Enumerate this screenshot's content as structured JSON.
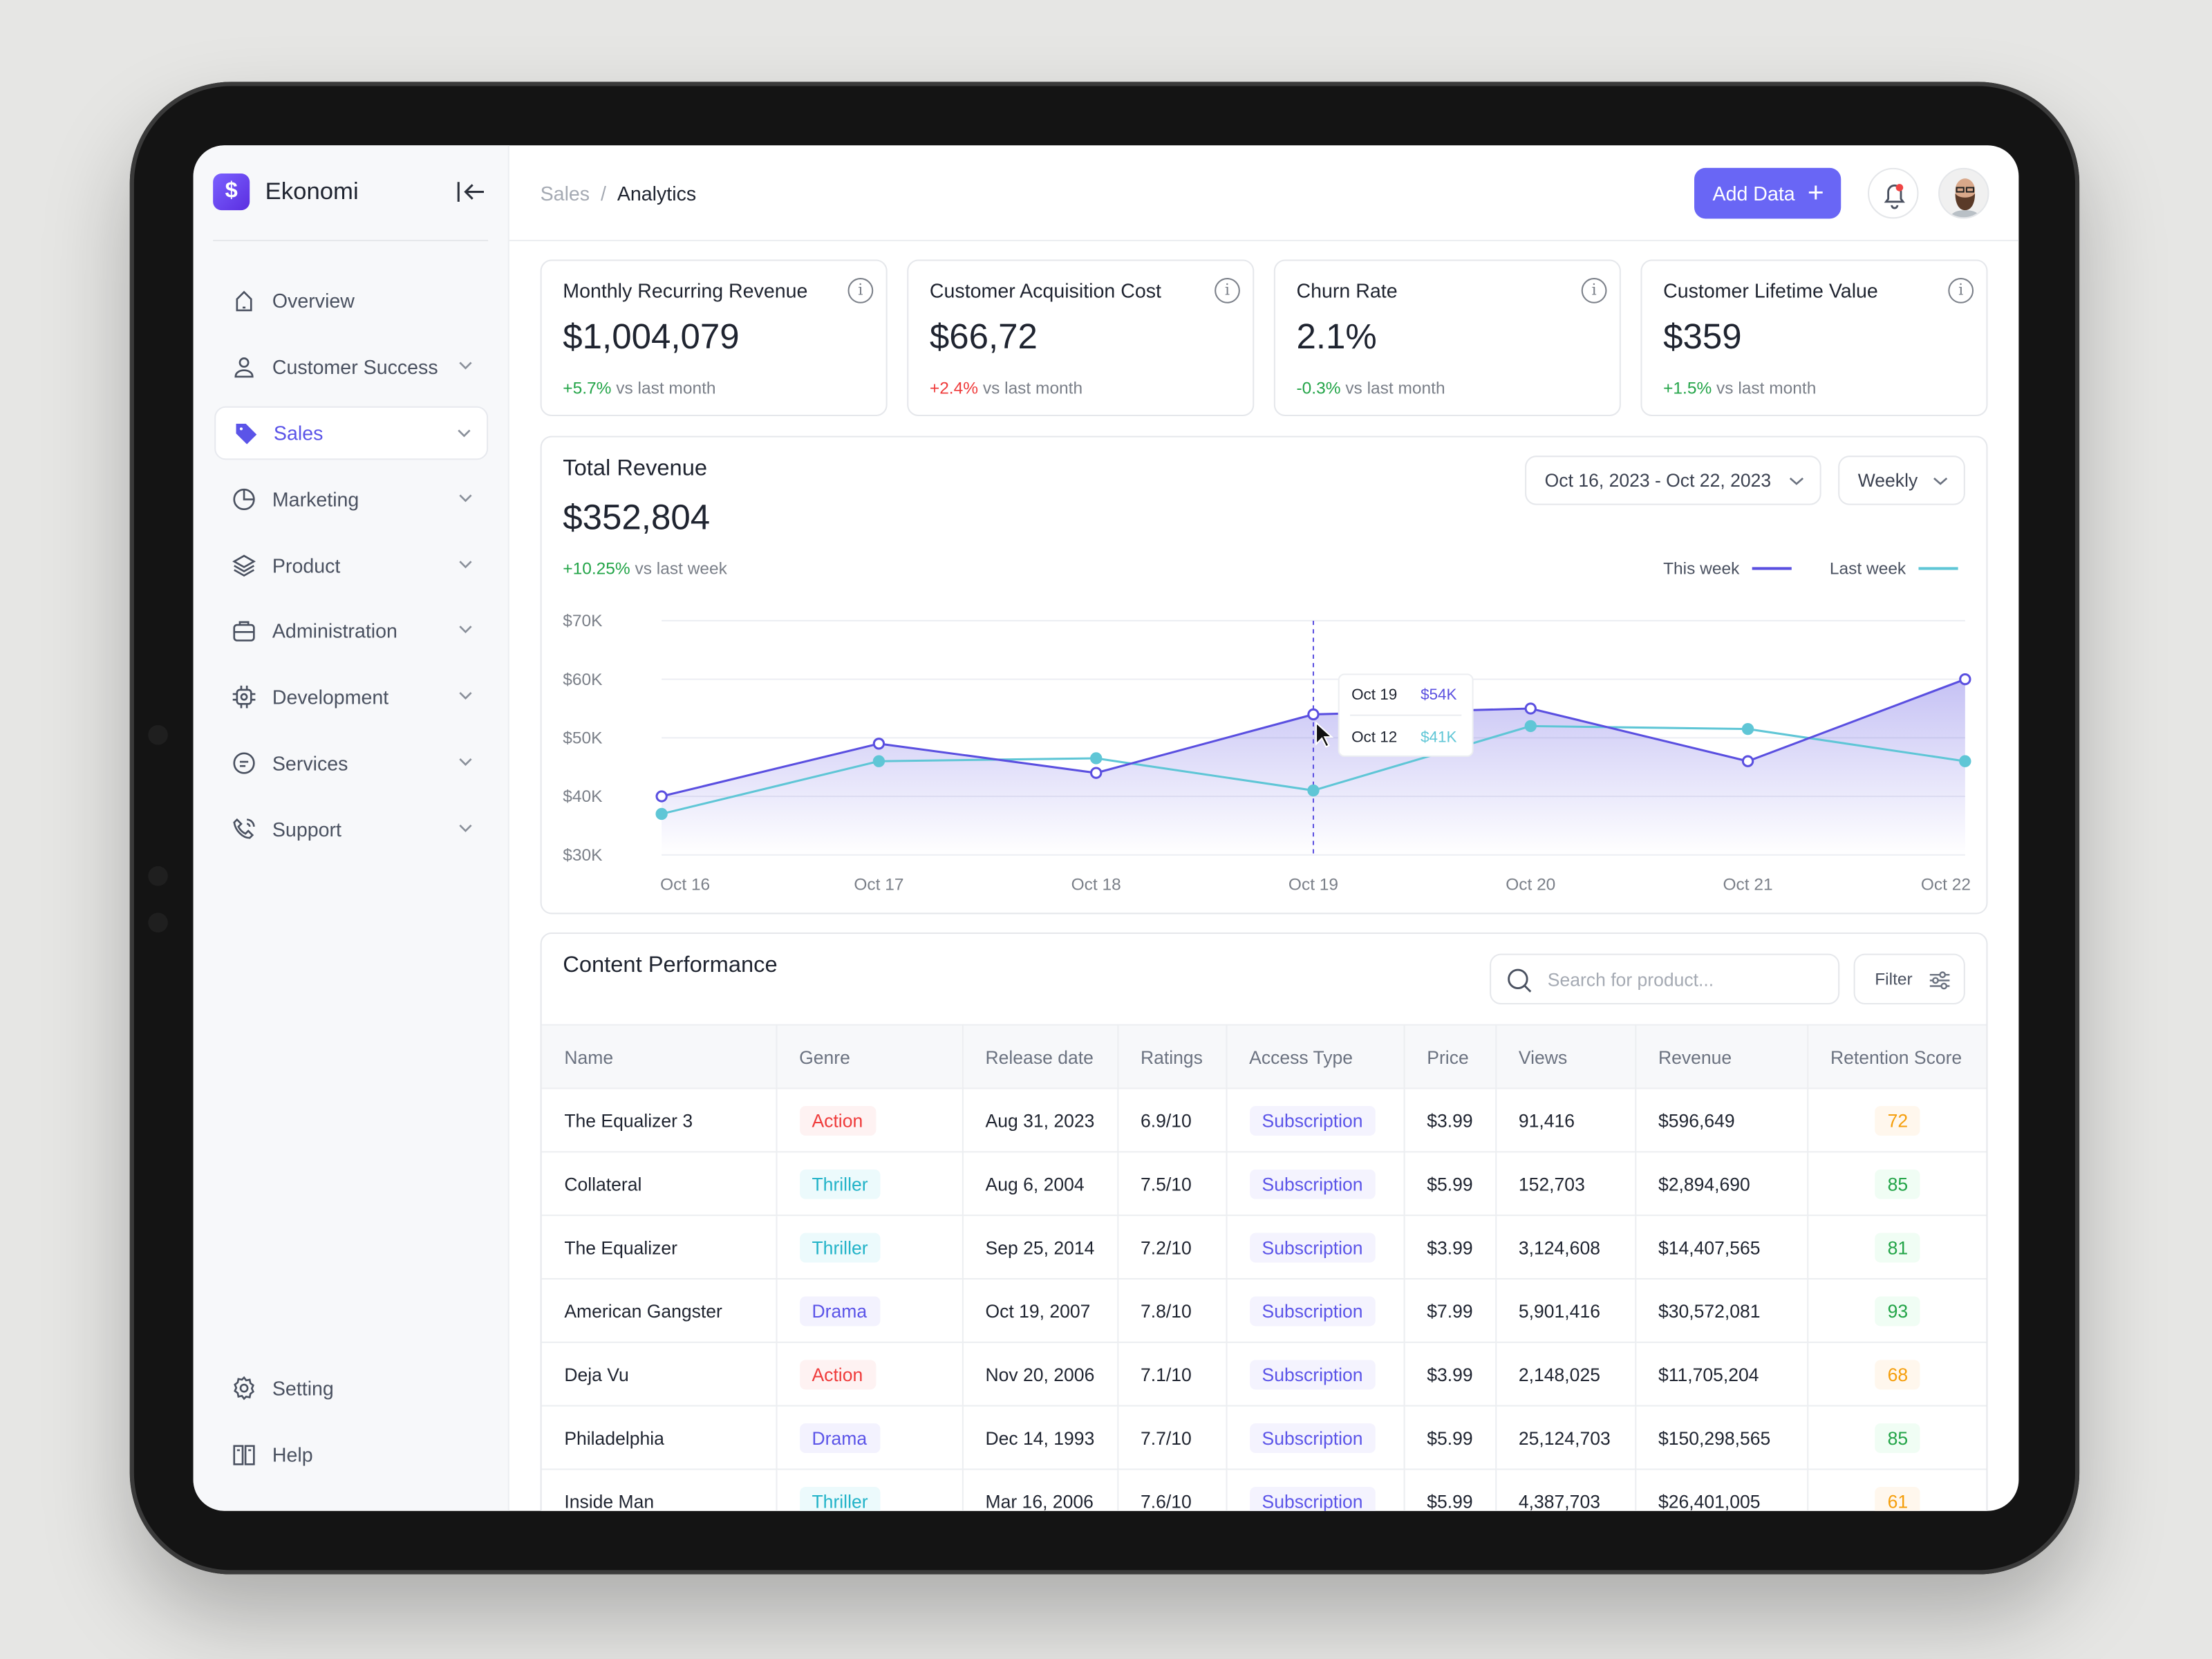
{
  "app": {
    "name": "Ekonomi"
  },
  "sidebar": {
    "items": [
      {
        "label": "Overview",
        "icon": "home-icon",
        "chevron": false
      },
      {
        "label": "Customer Success",
        "icon": "user-icon",
        "chevron": true
      },
      {
        "label": "Sales",
        "icon": "tag-icon",
        "chevron": true,
        "active": true
      },
      {
        "label": "Marketing",
        "icon": "pie-chart-icon",
        "chevron": true
      },
      {
        "label": "Product",
        "icon": "layers-icon",
        "chevron": true
      },
      {
        "label": "Administration",
        "icon": "briefcase-icon",
        "chevron": true
      },
      {
        "label": "Development",
        "icon": "chip-icon",
        "chevron": true
      },
      {
        "label": "Services",
        "icon": "message-icon",
        "chevron": true
      },
      {
        "label": "Support",
        "icon": "phone-icon",
        "chevron": true
      }
    ],
    "bottom": [
      {
        "label": "Setting",
        "icon": "gear-icon"
      },
      {
        "label": "Help",
        "icon": "book-icon"
      }
    ]
  },
  "header": {
    "breadcrumb": [
      "Sales",
      "Analytics"
    ],
    "add_button": "Add Data"
  },
  "kpis": [
    {
      "title": "Monthly Recurring Revenue",
      "value": "$1,004,079",
      "delta": "+5.7%",
      "delta_type": "pos",
      "suffix": "vs last month"
    },
    {
      "title": "Customer Acquisition Cost",
      "value": "$66,72",
      "delta": "+2.4%",
      "delta_type": "neg",
      "suffix": "vs last month"
    },
    {
      "title": "Churn Rate",
      "value": "2.1%",
      "delta": "-0.3%",
      "delta_type": "pos",
      "suffix": "vs last month"
    },
    {
      "title": "Customer Lifetime Value",
      "value": "$359",
      "delta": "+1.5%",
      "delta_type": "pos",
      "suffix": "vs last month"
    }
  ],
  "revenue": {
    "title": "Total Revenue",
    "value": "$352,804",
    "delta": "+10.25%",
    "suffix": "vs last week",
    "date_range": "Oct 16, 2023 - Oct 22, 2023",
    "period": "Weekly"
  },
  "chart_data": {
    "type": "line",
    "title": "Total Revenue",
    "categories": [
      "Oct 16",
      "Oct 17",
      "Oct 18",
      "Oct 19",
      "Oct 20",
      "Oct 21",
      "Oct 22"
    ],
    "y_ticks": [
      "$30K",
      "$40K",
      "$50K",
      "$60K",
      "$70K"
    ],
    "ylim": [
      30,
      70
    ],
    "y_unit": "$K",
    "series": [
      {
        "name": "This week",
        "color": "#5a4fe0",
        "values": [
          40,
          49,
          44,
          54,
          55,
          46,
          60
        ]
      },
      {
        "name": "Last week",
        "color": "#5fc6d6",
        "values": [
          37,
          46,
          46.5,
          41,
          52,
          51.5,
          46
        ]
      }
    ],
    "legend": "top-right",
    "tooltip": {
      "rows": [
        {
          "label": "Oct 19",
          "value": "$54K"
        },
        {
          "label": "Oct 12",
          "value": "$41K"
        }
      ],
      "index": 3
    }
  },
  "performance": {
    "title": "Content Performance",
    "search_placeholder": "Search for product...",
    "filter_label": "Filter",
    "columns": [
      "Name",
      "Genre",
      "Release date",
      "Ratings",
      "Access Type",
      "Price",
      "Views",
      "Revenue",
      "Retention Score"
    ],
    "rows": [
      [
        "The Equalizer 3",
        "Action",
        "Aug 31, 2023",
        "6.9/10",
        "Subscription",
        "$3.99",
        "91,416",
        "$596,649",
        "72"
      ],
      [
        "Collateral",
        "Thriller",
        "Aug 6, 2004",
        "7.5/10",
        "Subscription",
        "$5.99",
        "152,703",
        "$2,894,690",
        "85"
      ],
      [
        "The Equalizer",
        "Thriller",
        "Sep 25, 2014",
        "7.2/10",
        "Subscription",
        "$3.99",
        "3,124,608",
        "$14,407,565",
        "81"
      ],
      [
        "American Gangster",
        "Drama",
        "Oct 19, 2007",
        "7.8/10",
        "Subscription",
        "$7.99",
        "5,901,416",
        "$30,572,081",
        "93"
      ],
      [
        "Deja Vu",
        "Action",
        "Nov 20, 2006",
        "7.1/10",
        "Subscription",
        "$3.99",
        "2,148,025",
        "$11,705,204",
        "68"
      ],
      [
        "Philadelphia",
        "Drama",
        "Dec 14, 1993",
        "7.7/10",
        "Subscription",
        "$5.99",
        "25,124,703",
        "$150,298,565",
        "85"
      ],
      [
        "Inside Man",
        "Thriller",
        "Mar 16, 2006",
        "7.6/10",
        "Subscription",
        "$5.99",
        "4,387,703",
        "$26,401,005",
        "61"
      ]
    ]
  },
  "colors": {
    "accent": "#6966f5",
    "action": "#ef3b3b",
    "thriller": "#22b3c8",
    "drama": "#5b54e8",
    "good": "#22a447",
    "warn": "#f59e0b"
  }
}
